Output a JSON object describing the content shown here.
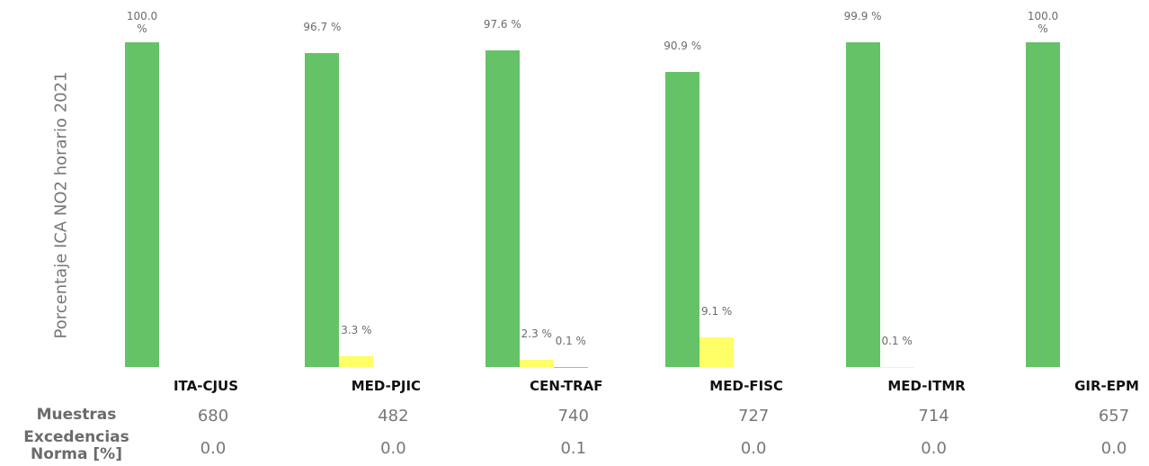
{
  "chart_data": {
    "type": "bar",
    "ylabel": "Porcentaje ICA NO2 horario 2021",
    "categories": [
      "ITA-CJUS",
      "MED-PJIC",
      "CEN-TRAF",
      "MED-FISC",
      "MED-ITMR",
      "GIR-EPM"
    ],
    "ylim": [
      0,
      100
    ],
    "series": [
      {
        "color": "#66c266",
        "values": [
          100.0,
          96.7,
          97.6,
          90.9,
          99.9,
          100.0
        ],
        "value_labels": [
          "100.0 %",
          "96.7 %",
          "97.6 %",
          "90.9 %",
          "99.9 %",
          "100.0 %"
        ]
      },
      {
        "color": "#ffff66",
        "values": [
          null,
          3.3,
          2.3,
          9.1,
          0.1,
          null
        ],
        "value_labels": [
          null,
          "3.3 %",
          "2.3 %",
          "9.1 %",
          "0.1 %",
          null
        ]
      },
      {
        "color": "#f4a442",
        "values": [
          null,
          null,
          0.1,
          null,
          null,
          null
        ],
        "value_labels": [
          null,
          null,
          "0.1 %",
          null,
          null,
          null
        ]
      }
    ],
    "table": {
      "rows": [
        {
          "label": "Muestras",
          "values": [
            "680",
            "482",
            "740",
            "727",
            "714",
            "657"
          ]
        },
        {
          "label": "Excedencias Norma [%]",
          "values": [
            "0.0",
            "0.0",
            "0.1",
            "0.0",
            "0.0",
            "0.0"
          ]
        }
      ]
    }
  }
}
